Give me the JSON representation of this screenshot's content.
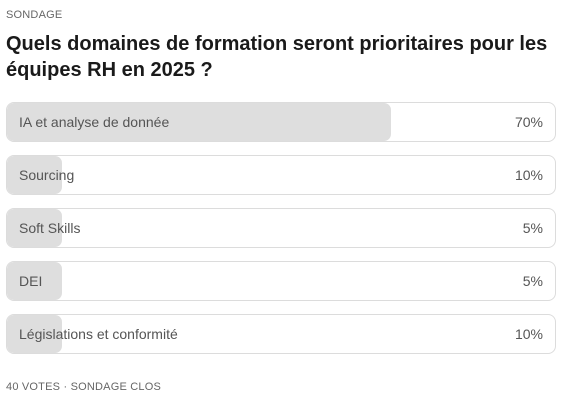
{
  "poll": {
    "kicker": "SONDAGE",
    "question": "Quels domaines de formation seront prioritaires pour les équipes RH en 2025 ?",
    "options": [
      {
        "label": "IA et analyse de donnée",
        "percent_label": "70%",
        "fraction": 0.7
      },
      {
        "label": "Sourcing",
        "percent_label": "10%",
        "fraction": 0.1
      },
      {
        "label": "Soft Skills",
        "percent_label": "5%",
        "fraction": 0.05
      },
      {
        "label": "DEI",
        "percent_label": "5%",
        "fraction": 0.05
      },
      {
        "label": "Législations et conformité",
        "percent_label": "10%",
        "fraction": 0.1
      }
    ],
    "votes": "40 VOTES",
    "separator": "·",
    "status": "SONDAGE CLOS"
  },
  "colors": {
    "bar_fill": "#dedede",
    "border": "#dcdcdc",
    "text_muted": "#555555"
  }
}
